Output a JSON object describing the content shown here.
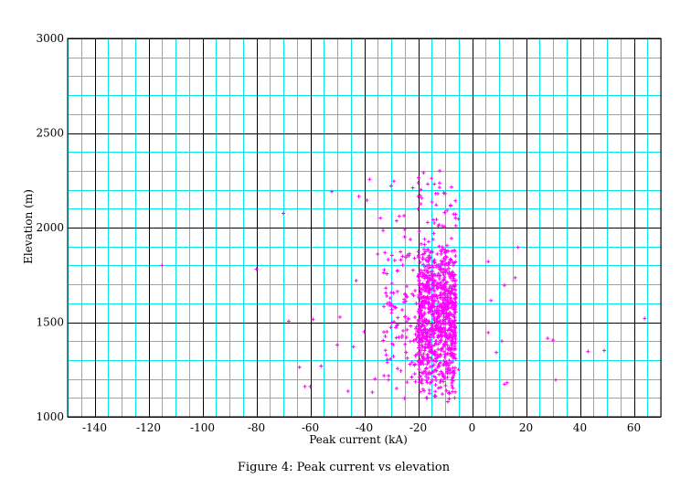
{
  "caption": "Figure 4: Peak current vs elevation",
  "colors": {
    "minor_grid": "#00e5e5",
    "major_grid": "#000000",
    "points": "#ff00ff",
    "background": "#ffffff"
  },
  "chart_data": {
    "type": "scatter",
    "title": "",
    "xlabel": "Peak current (kA)",
    "ylabel": "Elevation (m)",
    "xlim": [
      -150,
      70
    ],
    "ylim": [
      1000,
      3000
    ],
    "x_ticks": [
      -140,
      -120,
      -100,
      -80,
      -60,
      -40,
      -20,
      0,
      20,
      40,
      60
    ],
    "x_tick_labels": [
      "-140",
      "-120",
      "-100",
      "-80",
      "-60",
      "-40",
      "-20",
      "0",
      "20",
      "40",
      "60"
    ],
    "y_ticks": [
      1000,
      1500,
      2000,
      2500,
      3000
    ],
    "y_tick_labels": [
      "1000",
      "1500",
      "2000",
      "2500",
      "3000"
    ],
    "x_minor_step": 5,
    "y_minor_step": 100,
    "grid": true,
    "marker": "+",
    "cluster": {
      "x_range": [
        -33,
        -6
      ],
      "y_range": [
        1090,
        2290
      ],
      "approx_count": 1100
    },
    "points": [
      [
        -115,
        1800
      ],
      [
        -80,
        1780
      ],
      [
        -70,
        2075
      ],
      [
        -68,
        1505
      ],
      [
        -64,
        1262
      ],
      [
        -62,
        1160
      ],
      [
        -60,
        1160
      ],
      [
        -59,
        1515
      ],
      [
        -56,
        1268
      ],
      [
        -52,
        2190
      ],
      [
        -50,
        1380
      ],
      [
        -49,
        1527
      ],
      [
        -46,
        1135
      ],
      [
        -44,
        1370
      ],
      [
        -43,
        1720
      ],
      [
        -42,
        2165
      ],
      [
        -40,
        1450
      ],
      [
        -39,
        2145
      ],
      [
        -38,
        2255
      ],
      [
        -37,
        1130
      ],
      [
        -36,
        1200
      ],
      [
        -35,
        1860
      ],
      [
        -34,
        2050
      ],
      [
        -33,
        1985
      ],
      [
        -32,
        1680
      ],
      [
        -31,
        1195
      ],
      [
        -30,
        2220
      ],
      [
        -29,
        2245
      ],
      [
        -28,
        1150
      ],
      [
        -27,
        2060
      ],
      [
        -26,
        1420
      ],
      [
        -25,
        1990
      ],
      [
        -24,
        1310
      ],
      [
        -22,
        2210
      ],
      [
        -21,
        1185
      ],
      [
        -20,
        2165
      ],
      [
        -19,
        2200
      ],
      [
        -18,
        2290
      ],
      [
        -17,
        1100
      ],
      [
        -15,
        2260
      ],
      [
        -14,
        2230
      ],
      [
        -12,
        2300
      ],
      [
        -11,
        1120
      ],
      [
        -10,
        2180
      ],
      [
        -9,
        1080
      ],
      [
        -8,
        2115
      ],
      [
        -7,
        1190
      ],
      [
        -6,
        2010
      ],
      [
        -5,
        2045
      ],
      [
        -6,
        1720
      ],
      [
        -7,
        1400
      ],
      [
        -5,
        1250
      ],
      [
        6,
        1820
      ],
      [
        6,
        1445
      ],
      [
        7,
        1615
      ],
      [
        9,
        1340
      ],
      [
        11,
        1400
      ],
      [
        12,
        1695
      ],
      [
        12,
        1172
      ],
      [
        13,
        1180
      ],
      [
        16,
        1735
      ],
      [
        17,
        1895
      ],
      [
        28,
        1415
      ],
      [
        30,
        1405
      ],
      [
        31,
        1195
      ],
      [
        43,
        1345
      ],
      [
        49,
        1350
      ],
      [
        64,
        1520
      ]
    ]
  }
}
